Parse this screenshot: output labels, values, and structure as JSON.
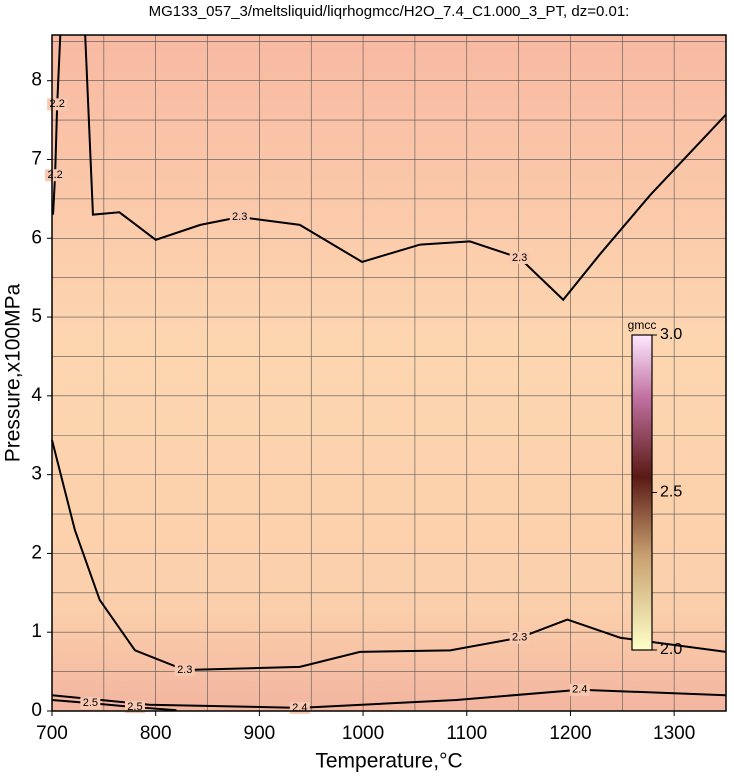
{
  "chart_data": {
    "type": "contour",
    "title": "MG133_057_3/meltsliquid/liqrhogmcc/H2O_7.4_C1.000_3_PT, dz=0.01:",
    "x_label": "Temperature,°C",
    "y_label": "Pressure,x100MPa",
    "xlim": [
      700,
      1350
    ],
    "ylim": [
      0,
      8.58
    ],
    "xticks": [
      700,
      800,
      900,
      1000,
      1100,
      1200,
      1300
    ],
    "yticks": [
      0,
      1,
      2,
      3,
      4,
      5,
      6,
      7,
      8
    ],
    "xgrid": [
      750,
      800,
      850,
      900,
      950,
      1000,
      1050,
      1100,
      1150,
      1200,
      1250,
      1300
    ],
    "ygrid": [
      0.5,
      1,
      1.5,
      2,
      2.5,
      3,
      3.5,
      4,
      4.5,
      5,
      5.5,
      6,
      6.5,
      7,
      7.5,
      8,
      8.5
    ],
    "grid": true,
    "contours": [
      {
        "level": 2.3,
        "label": "2.3",
        "color": "#000000",
        "x": [
          732,
          739.5,
          765,
          800,
          843,
          881,
          939,
          999,
          1055,
          1103,
          1151,
          1193,
          1228,
          1277,
          1350
        ],
        "y": [
          8.58,
          6.3,
          6.33,
          5.98,
          6.17,
          6.27,
          6.17,
          5.7,
          5.92,
          5.96,
          5.75,
          5.22,
          5.79,
          6.55,
          7.57
        ]
      },
      {
        "level": 2.3,
        "label": "2.3",
        "color": "#000000",
        "x": [
          700,
          722,
          746,
          780,
          828,
          939,
          997,
          1084,
          1151,
          1197,
          1248,
          1350
        ],
        "y": [
          3.44,
          2.3,
          1.41,
          0.77,
          0.52,
          0.56,
          0.75,
          0.77,
          0.93,
          1.16,
          0.93,
          0.75
        ]
      },
      {
        "level": 2.4,
        "label": "2.4",
        "color": "#000000",
        "x": [
          700,
          794,
          939,
          1090,
          1209,
          1350
        ],
        "y": [
          0.2,
          0.08,
          0.04,
          0.14,
          0.27,
          0.2
        ]
      },
      {
        "level": 2.5,
        "label": "2.5",
        "color": "#000000",
        "x": [
          700,
          737,
          780,
          820
        ],
        "y": [
          0.14,
          0.1,
          0.05,
          0.01
        ]
      },
      {
        "level": 2.2,
        "label": "2.2",
        "color": "#000000",
        "x": [
          708,
          705,
          703,
          701
        ],
        "y": [
          8.58,
          7.7,
          6.8,
          6.3
        ]
      }
    ],
    "colorbar": {
      "title": "gmcc",
      "lim": [
        2.0,
        3.0
      ],
      "ticks": [
        {
          "value": 2,
          "label": "2.0"
        },
        2.5,
        {
          "value": 3,
          "label": "3.0"
        }
      ]
    }
  }
}
